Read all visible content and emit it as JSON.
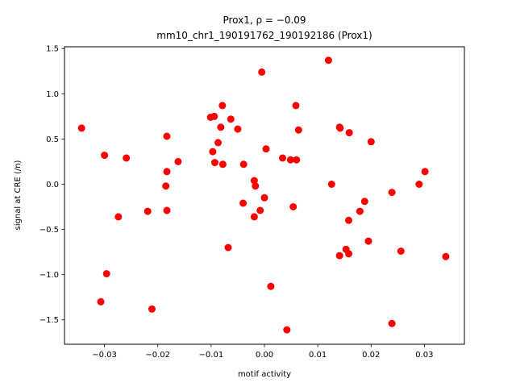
{
  "chart_data": {
    "type": "scatter",
    "title_line1": "Prox1, ρ = −0.09",
    "title_line2": "mm10_chr1_190191762_190192186 (Prox1)",
    "xlabel": "motif activity",
    "ylabel": "signal at CRE (/n)",
    "xlim": [
      -0.0375,
      0.0375
    ],
    "ylim": [
      -1.77,
      1.52
    ],
    "xticks": [
      -0.03,
      -0.02,
      -0.01,
      0.0,
      0.01,
      0.02,
      0.03
    ],
    "xtick_labels": [
      "−0.03",
      "−0.02",
      "−0.01",
      "0.00",
      "0.01",
      "0.02",
      "0.03"
    ],
    "yticks": [
      -1.5,
      -1.0,
      -0.5,
      0.0,
      0.5,
      1.0,
      1.5
    ],
    "ytick_labels": [
      "−1.5",
      "−1.0",
      "−0.5",
      "0.0",
      "0.5",
      "1.0",
      "1.5"
    ],
    "grid": false,
    "marker_color": "#ff0000",
    "points": [
      {
        "x": -0.0343,
        "y": 0.62
      },
      {
        "x": -0.03,
        "y": 0.32
      },
      {
        "x": -0.0296,
        "y": -0.99
      },
      {
        "x": -0.0307,
        "y": -1.3
      },
      {
        "x": -0.0274,
        "y": -0.36
      },
      {
        "x": -0.0259,
        "y": 0.29
      },
      {
        "x": -0.0219,
        "y": -0.3
      },
      {
        "x": -0.0211,
        "y": -1.38
      },
      {
        "x": -0.0183,
        "y": 0.53
      },
      {
        "x": -0.0183,
        "y": 0.14
      },
      {
        "x": -0.0185,
        "y": -0.02
      },
      {
        "x": -0.0183,
        "y": -0.29
      },
      {
        "x": -0.0162,
        "y": 0.25
      },
      {
        "x": -0.0101,
        "y": 0.74
      },
      {
        "x": -0.0094,
        "y": 0.75
      },
      {
        "x": -0.0079,
        "y": 0.87
      },
      {
        "x": -0.0082,
        "y": 0.63
      },
      {
        "x": -0.0063,
        "y": 0.72
      },
      {
        "x": -0.005,
        "y": 0.61
      },
      {
        "x": -0.0087,
        "y": 0.46
      },
      {
        "x": -0.0097,
        "y": 0.36
      },
      {
        "x": -0.0093,
        "y": 0.24
      },
      {
        "x": -0.0078,
        "y": 0.22
      },
      {
        "x": -0.0068,
        "y": -0.7
      },
      {
        "x": -0.0039,
        "y": 0.22
      },
      {
        "x": -0.0019,
        "y": 0.04
      },
      {
        "x": -0.0017,
        "y": -0.02
      },
      {
        "x": -0.004,
        "y": -0.21
      },
      {
        "x": -0.0008,
        "y": -0.29
      },
      {
        "x": -0.0019,
        "y": -0.36
      },
      {
        "x": 0.0,
        "y": -0.15
      },
      {
        "x": -0.0005,
        "y": 1.24
      },
      {
        "x": 0.0003,
        "y": 0.39
      },
      {
        "x": 0.0034,
        "y": 0.29
      },
      {
        "x": 0.0049,
        "y": 0.27
      },
      {
        "x": 0.006,
        "y": 0.27
      },
      {
        "x": 0.0059,
        "y": 0.87
      },
      {
        "x": 0.0064,
        "y": 0.6
      },
      {
        "x": 0.0054,
        "y": -0.25
      },
      {
        "x": 0.0012,
        "y": -1.13
      },
      {
        "x": 0.0042,
        "y": -1.61
      },
      {
        "x": 0.012,
        "y": 1.37
      },
      {
        "x": 0.0126,
        "y": 0.0
      },
      {
        "x": 0.0141,
        "y": 0.63
      },
      {
        "x": 0.0142,
        "y": 0.62
      },
      {
        "x": 0.0159,
        "y": 0.57
      },
      {
        "x": 0.0141,
        "y": -0.79
      },
      {
        "x": 0.0153,
        "y": -0.72
      },
      {
        "x": 0.0158,
        "y": -0.77
      },
      {
        "x": 0.0158,
        "y": -0.4
      },
      {
        "x": 0.0179,
        "y": -0.3
      },
      {
        "x": 0.0188,
        "y": -0.19
      },
      {
        "x": 0.0195,
        "y": -0.63
      },
      {
        "x": 0.02,
        "y": 0.47
      },
      {
        "x": 0.0239,
        "y": -0.09
      },
      {
        "x": 0.0239,
        "y": -1.54
      },
      {
        "x": 0.0256,
        "y": -0.74
      },
      {
        "x": 0.029,
        "y": 0.0
      },
      {
        "x": 0.0301,
        "y": 0.14
      },
      {
        "x": 0.034,
        "y": -0.8
      }
    ]
  }
}
